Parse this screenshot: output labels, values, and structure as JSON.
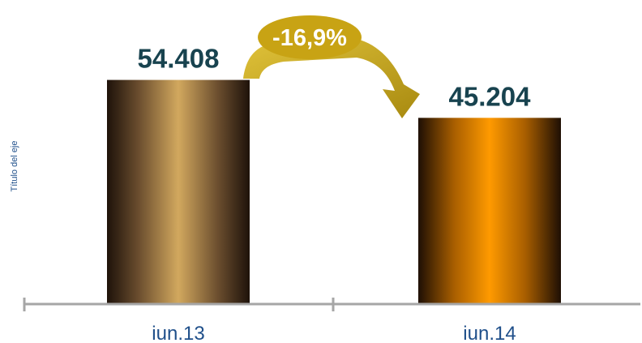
{
  "chart_data": {
    "type": "bar",
    "categories": [
      "iun.13",
      "iun.14"
    ],
    "values": [
      54408,
      45204
    ],
    "value_labels": [
      "54.408",
      "45.204"
    ],
    "ylabel": "Título del eje",
    "ylim": [
      0,
      62000
    ],
    "grid": false,
    "legend": "none",
    "annotation": {
      "text": "-16,9%",
      "from": "iun.13",
      "to": "iun.14"
    },
    "colors": {
      "bar_1": "#d2a85e",
      "bar_2": "#ff9a00",
      "bar_edge": "#1e120a",
      "value_label": "#18434f",
      "category_label": "#1f4f8a",
      "axis_title": "#1f4f8a",
      "axis_line": "#a6a6a6",
      "annotation_fill": "#c8a314",
      "annotation_text": "#ffffff"
    }
  }
}
